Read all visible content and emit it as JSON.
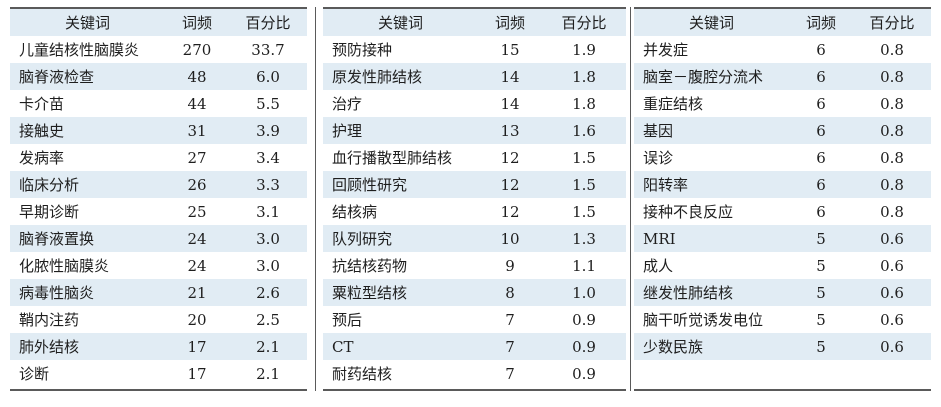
{
  "headers": {
    "keyword": "关键词",
    "freq": "词频",
    "pct": "百分比"
  },
  "tables": [
    {
      "rows": [
        {
          "keyword": "儿童结核性脑膜炎",
          "freq": "270",
          "pct": "33.7"
        },
        {
          "keyword": "脑脊液检查",
          "freq": "48",
          "pct": "6.0"
        },
        {
          "keyword": "卡介苗",
          "freq": "44",
          "pct": "5.5"
        },
        {
          "keyword": "接触史",
          "freq": "31",
          "pct": "3.9"
        },
        {
          "keyword": "发病率",
          "freq": "27",
          "pct": "3.4"
        },
        {
          "keyword": "临床分析",
          "freq": "26",
          "pct": "3.3"
        },
        {
          "keyword": "早期诊断",
          "freq": "25",
          "pct": "3.1"
        },
        {
          "keyword": "脑脊液置换",
          "freq": "24",
          "pct": "3.0"
        },
        {
          "keyword": "化脓性脑膜炎",
          "freq": "24",
          "pct": "3.0"
        },
        {
          "keyword": "病毒性脑炎",
          "freq": "21",
          "pct": "2.6"
        },
        {
          "keyword": "鞘内注药",
          "freq": "20",
          "pct": "2.5"
        },
        {
          "keyword": "肺外结核",
          "freq": "17",
          "pct": "2.1"
        },
        {
          "keyword": "诊断",
          "freq": "17",
          "pct": "2.1"
        }
      ]
    },
    {
      "rows": [
        {
          "keyword": "预防接种",
          "freq": "15",
          "pct": "1.9"
        },
        {
          "keyword": "原发性肺结核",
          "freq": "14",
          "pct": "1.8"
        },
        {
          "keyword": "治疗",
          "freq": "14",
          "pct": "1.8"
        },
        {
          "keyword": "护理",
          "freq": "13",
          "pct": "1.6"
        },
        {
          "keyword": "血行播散型肺结核",
          "freq": "12",
          "pct": "1.5"
        },
        {
          "keyword": "回顾性研究",
          "freq": "12",
          "pct": "1.5"
        },
        {
          "keyword": "结核病",
          "freq": "12",
          "pct": "1.5"
        },
        {
          "keyword": "队列研究",
          "freq": "10",
          "pct": "1.3"
        },
        {
          "keyword": "抗结核药物",
          "freq": "9",
          "pct": "1.1"
        },
        {
          "keyword": "粟粒型结核",
          "freq": "8",
          "pct": "1.0"
        },
        {
          "keyword": "预后",
          "freq": "7",
          "pct": "0.9"
        },
        {
          "keyword": "CT",
          "freq": "7",
          "pct": "0.9"
        },
        {
          "keyword": "耐药结核",
          "freq": "7",
          "pct": "0.9"
        }
      ]
    },
    {
      "rows": [
        {
          "keyword": "并发症",
          "freq": "6",
          "pct": "0.8"
        },
        {
          "keyword": "脑室－腹腔分流术",
          "freq": "6",
          "pct": "0.8"
        },
        {
          "keyword": "重症结核",
          "freq": "6",
          "pct": "0.8"
        },
        {
          "keyword": "基因",
          "freq": "6",
          "pct": "0.8"
        },
        {
          "keyword": "误诊",
          "freq": "6",
          "pct": "0.8"
        },
        {
          "keyword": "阳转率",
          "freq": "6",
          "pct": "0.8"
        },
        {
          "keyword": "接种不良反应",
          "freq": "6",
          "pct": "0.8"
        },
        {
          "keyword": "MRI",
          "freq": "5",
          "pct": "0.6"
        },
        {
          "keyword": "成人",
          "freq": "5",
          "pct": "0.6"
        },
        {
          "keyword": "继发性肺结核",
          "freq": "5",
          "pct": "0.6"
        },
        {
          "keyword": "脑干听觉诱发电位",
          "freq": "5",
          "pct": "0.6"
        },
        {
          "keyword": "少数民族",
          "freq": "5",
          "pct": "0.6"
        },
        {
          "keyword": "",
          "freq": "",
          "pct": ""
        }
      ]
    }
  ]
}
